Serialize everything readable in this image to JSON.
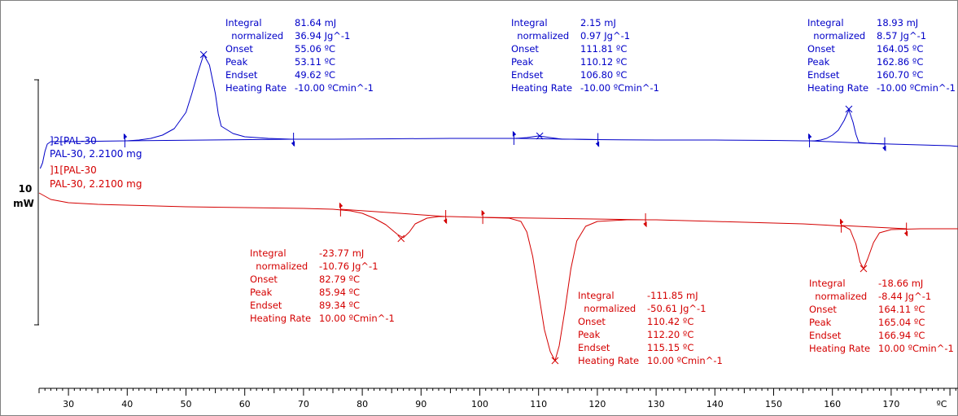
{
  "chart_data": {
    "type": "line",
    "xlabel": "ºC",
    "xlim": [
      25,
      195
    ],
    "x_ticks": [
      30,
      40,
      50,
      60,
      70,
      80,
      90,
      100,
      110,
      120,
      130,
      140,
      150,
      160,
      170
    ],
    "scale_bar": {
      "value": "10",
      "unit": "mW"
    },
    "colors": {
      "heating": "#0000c8",
      "cooling": "#d40000"
    },
    "series": [
      {
        "id": "s2",
        "name": "]2[PAL-30",
        "sample": "PAL-30, 2.2100 mg",
        "color": "#0000c8",
        "points": [
          [
            25.2,
            207
          ],
          [
            25.6,
            200
          ],
          [
            26.0,
            186
          ],
          [
            26.4,
            177
          ],
          [
            27,
            174
          ],
          [
            30,
            174
          ],
          [
            35,
            173.5
          ],
          [
            40,
            173
          ],
          [
            42,
            172
          ],
          [
            44,
            170
          ],
          [
            46,
            166
          ],
          [
            48,
            158
          ],
          [
            50,
            138
          ],
          [
            51,
            115
          ],
          [
            52,
            90
          ],
          [
            53,
            67
          ],
          [
            54,
            80
          ],
          [
            55,
            115
          ],
          [
            55.5,
            140
          ],
          [
            56,
            155
          ],
          [
            58,
            164
          ],
          [
            60,
            168
          ],
          [
            64,
            170
          ],
          [
            68,
            171
          ],
          [
            75,
            171
          ],
          [
            85,
            170.5
          ],
          [
            95,
            170
          ],
          [
            105,
            170
          ],
          [
            106,
            170
          ],
          [
            108,
            169
          ],
          [
            110,
            167
          ],
          [
            112,
            169
          ],
          [
            114,
            171
          ],
          [
            116,
            171
          ],
          [
            120,
            171.5
          ],
          [
            130,
            172
          ],
          [
            140,
            172
          ],
          [
            150,
            172.5
          ],
          [
            155,
            173
          ],
          [
            157,
            173
          ],
          [
            158,
            172
          ],
          [
            159,
            170
          ],
          [
            160,
            166
          ],
          [
            161,
            160
          ],
          [
            162,
            148
          ],
          [
            162.8,
            135
          ],
          [
            163.5,
            150
          ],
          [
            164,
            165
          ],
          [
            164.5,
            175
          ],
          [
            166,
            176
          ],
          [
            170,
            177
          ],
          [
            175,
            178
          ],
          [
            180,
            179
          ],
          [
            185,
            182
          ],
          [
            188,
            186
          ],
          [
            191,
            193
          ],
          [
            193,
            203
          ],
          [
            194.3,
            214
          ]
        ]
      },
      {
        "id": "s1",
        "name": "]1[PAL-30",
        "sample": "PAL-30, 2.2100 mg",
        "color": "#d40000",
        "points": [
          [
            25,
            237
          ],
          [
            27,
            245
          ],
          [
            30,
            249
          ],
          [
            35,
            251
          ],
          [
            40,
            252
          ],
          [
            50,
            254
          ],
          [
            60,
            255
          ],
          [
            70,
            256
          ],
          [
            75,
            257
          ],
          [
            78,
            259
          ],
          [
            80,
            262
          ],
          [
            82,
            268
          ],
          [
            84,
            276
          ],
          [
            86,
            288
          ],
          [
            87,
            292
          ],
          [
            88,
            285
          ],
          [
            89,
            275
          ],
          [
            91,
            268
          ],
          [
            93,
            266
          ],
          [
            95,
            266
          ],
          [
            100,
            267
          ],
          [
            105,
            268
          ],
          [
            107,
            272
          ],
          [
            108,
            285
          ],
          [
            109,
            315
          ],
          [
            110,
            360
          ],
          [
            111,
            405
          ],
          [
            112,
            432
          ],
          [
            112.8,
            443
          ],
          [
            113.5,
            425
          ],
          [
            114.5,
            380
          ],
          [
            115.5,
            330
          ],
          [
            116.5,
            296
          ],
          [
            118,
            278
          ],
          [
            120,
            272
          ],
          [
            125,
            270
          ],
          [
            130,
            270
          ],
          [
            140,
            272
          ],
          [
            150,
            274
          ],
          [
            155,
            275
          ],
          [
            160,
            277
          ],
          [
            162,
            278
          ],
          [
            163,
            282
          ],
          [
            164,
            300
          ],
          [
            164.7,
            322
          ],
          [
            165.3,
            330
          ],
          [
            166,
            318
          ],
          [
            167,
            298
          ],
          [
            168,
            286
          ],
          [
            170,
            282
          ],
          [
            175,
            281
          ],
          [
            180,
            281
          ],
          [
            185,
            281
          ],
          [
            190,
            280
          ],
          [
            190.8,
            278
          ],
          [
            191.3,
            272
          ],
          [
            191.6,
            281
          ],
          [
            192,
            280
          ],
          [
            193,
            260
          ],
          [
            194.3,
            214
          ]
        ]
      }
    ],
    "marks": [
      {
        "series": "s2",
        "dir": "down",
        "x": 39.6
      },
      {
        "series": "s2",
        "dir": "up",
        "x": 68.3
      },
      {
        "series": "s2",
        "dir": "down",
        "x": 105.8
      },
      {
        "series": "s2",
        "dir": "up",
        "x": 120.1
      },
      {
        "series": "s2",
        "dir": "down",
        "x": 156.1
      },
      {
        "series": "s2",
        "dir": "up",
        "x": 168.9
      },
      {
        "series": "s1",
        "dir": "down",
        "x": 76.3
      },
      {
        "series": "s1",
        "dir": "up",
        "x": 94.2
      },
      {
        "series": "s1",
        "dir": "down",
        "x": 100.5
      },
      {
        "series": "s1",
        "dir": "up",
        "x": 128.2
      },
      {
        "series": "s1",
        "dir": "down",
        "x": 161.5
      },
      {
        "series": "s1",
        "dir": "up",
        "x": 172.6
      }
    ],
    "peaks": [
      {
        "series": "s2",
        "x": 53.0,
        "y": 67
      },
      {
        "series": "s2",
        "x": 110.2,
        "y": 167
      },
      {
        "series": "s2",
        "x": 162.8,
        "y": 134
      },
      {
        "series": "s1",
        "x": 86.6,
        "y": 293
      },
      {
        "series": "s1",
        "x": 112.8,
        "y": 443
      },
      {
        "series": "s1",
        "x": 165.3,
        "y": 330
      }
    ],
    "baselines": [
      {
        "series": "s2",
        "from": [
          39.6,
          173
        ],
        "to": [
          68.3,
          171
        ]
      },
      {
        "series": "s2",
        "from": [
          105.8,
          170
        ],
        "to": [
          120.1,
          171.5
        ]
      },
      {
        "series": "s2",
        "from": [
          156.1,
          173
        ],
        "to": [
          168.9,
          177
        ]
      },
      {
        "series": "s1",
        "from": [
          76.3,
          257
        ],
        "to": [
          94.2,
          266
        ]
      },
      {
        "series": "s1",
        "from": [
          100.5,
          267
        ],
        "to": [
          128.2,
          270
        ]
      },
      {
        "series": "s1",
        "from": [
          161.5,
          277
        ],
        "to": [
          172.6,
          281
        ]
      }
    ],
    "annotations": [
      {
        "series": "s2",
        "rows": [
          [
            "Integral",
            "81.64 mJ"
          ],
          [
            "  normalized",
            "36.94 Jg^-1"
          ],
          [
            "Onset",
            "55.06 ºC"
          ],
          [
            "Peak",
            "53.11 ºC"
          ],
          [
            "Endset",
            "49.62 ºC"
          ],
          [
            "Heating Rate",
            "-10.00 ºCmin^-1"
          ]
        ]
      },
      {
        "series": "s2",
        "rows": [
          [
            "Integral",
            "2.15 mJ"
          ],
          [
            "  normalized",
            "0.97 Jg^-1"
          ],
          [
            "Onset",
            "111.81 ºC"
          ],
          [
            "Peak",
            "110.12 ºC"
          ],
          [
            "Endset",
            "106.80 ºC"
          ],
          [
            "Heating Rate",
            "-10.00 ºCmin^-1"
          ]
        ]
      },
      {
        "series": "s2",
        "rows": [
          [
            "Integral",
            "18.93 mJ"
          ],
          [
            "  normalized",
            "8.57 Jg^-1"
          ],
          [
            "Onset",
            "164.05 ºC"
          ],
          [
            "Peak",
            "162.86 ºC"
          ],
          [
            "Endset",
            "160.70 ºC"
          ],
          [
            "Heating Rate",
            "-10.00 ºCmin^-1"
          ]
        ]
      },
      {
        "series": "s1",
        "rows": [
          [
            "Integral",
            "-23.77 mJ"
          ],
          [
            "  normalized",
            "-10.76 Jg^-1"
          ],
          [
            "Onset",
            "82.79 ºC"
          ],
          [
            "Peak",
            "85.94 ºC"
          ],
          [
            "Endset",
            "89.34 ºC"
          ],
          [
            "Heating Rate",
            "10.00 ºCmin^-1"
          ]
        ]
      },
      {
        "series": "s1",
        "rows": [
          [
            "Integral",
            "-111.85 mJ"
          ],
          [
            "  normalized",
            "-50.61 Jg^-1"
          ],
          [
            "Onset",
            "110.42 ºC"
          ],
          [
            "Peak",
            "112.20 ºC"
          ],
          [
            "Endset",
            "115.15 ºC"
          ],
          [
            "Heating Rate",
            "10.00 ºCmin^-1"
          ]
        ]
      },
      {
        "series": "s1",
        "rows": [
          [
            "Integral",
            "-18.66 mJ"
          ],
          [
            "  normalized",
            "-8.44 Jg^-1"
          ],
          [
            "Onset",
            "164.11 ºC"
          ],
          [
            "Peak",
            "165.04 ºC"
          ],
          [
            "Endset",
            "166.94 ºC"
          ],
          [
            "Heating Rate",
            "10.00 ºCmin^-1"
          ]
        ]
      }
    ]
  }
}
